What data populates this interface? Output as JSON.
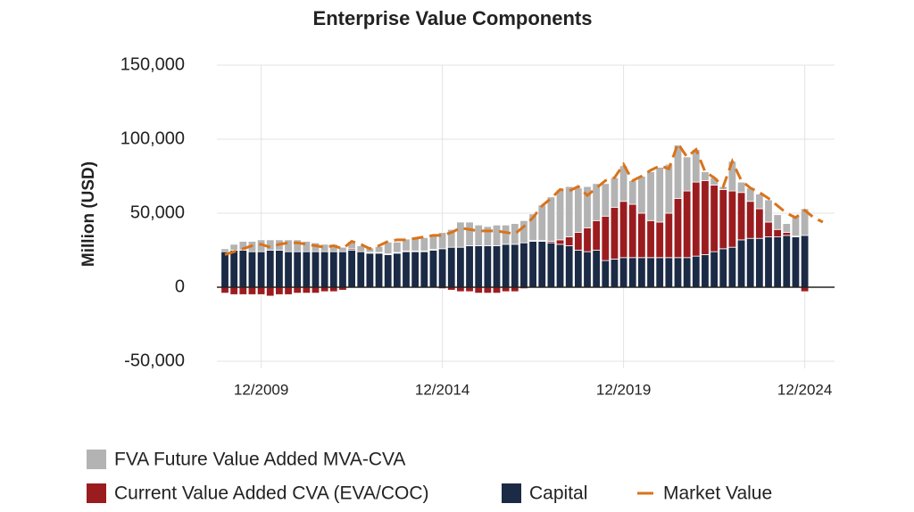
{
  "chart_data": {
    "type": "bar",
    "stacked": true,
    "title": "Enterprise Value Components",
    "y_label": "Million (USD)",
    "categories": [
      null,
      null,
      null,
      null,
      "12/2009",
      null,
      null,
      null,
      null,
      null,
      null,
      null,
      null,
      null,
      null,
      null,
      null,
      null,
      null,
      null,
      null,
      null,
      null,
      null,
      "12/2014",
      null,
      null,
      null,
      null,
      null,
      null,
      null,
      null,
      null,
      null,
      null,
      null,
      null,
      null,
      null,
      null,
      null,
      null,
      null,
      "12/2019",
      null,
      null,
      null,
      null,
      null,
      null,
      null,
      null,
      null,
      null,
      null,
      null,
      null,
      null,
      null,
      null,
      null,
      null,
      null,
      "12/2024",
      null,
      null
    ],
    "ylim": [
      -50000,
      150000
    ],
    "yticks": [
      {
        "value": -50000,
        "label": "-50,000"
      },
      0,
      {
        "value": 50000,
        "label": "50,000"
      },
      {
        "value": 100000,
        "label": "100,000"
      },
      {
        "value": 150000,
        "label": "150,000"
      }
    ],
    "grid": true,
    "legend": "bottom",
    "series": [
      {
        "name": "FVA Future Value Added MVA-CVA",
        "color": "#b3b3b3",
        "values": [
          2000,
          4000,
          6000,
          7000,
          8000,
          7000,
          7000,
          8000,
          8000,
          7000,
          6000,
          5000,
          5000,
          3000,
          5000,
          4000,
          3000,
          4000,
          8000,
          7000,
          8000,
          9000,
          9000,
          10000,
          11000,
          12000,
          17000,
          16000,
          14000,
          13000,
          14000,
          13000,
          14000,
          15000,
          18000,
          24000,
          30000,
          34000,
          34000,
          30000,
          28000,
          25000,
          22000,
          20000,
          24000,
          16000,
          25000,
          33000,
          37000,
          33000,
          36000,
          23000,
          22000,
          6000,
          5000,
          2000,
          20000,
          7000,
          9000,
          10000,
          15000,
          10000,
          6000,
          14000,
          18000,
          null,
          null
        ]
      },
      {
        "name": "Current Value Added CVA (EVA/COC)",
        "color": "#9b1c1f",
        "values": [
          -4000,
          -5000,
          -5000,
          -5000,
          -5000,
          -6000,
          -5000,
          -5000,
          -4000,
          -4000,
          -4000,
          -3000,
          -3000,
          -2000,
          1000,
          0,
          500,
          500,
          500,
          500,
          500,
          500,
          500,
          500,
          -1000,
          -2000,
          -3000,
          -3000,
          -4000,
          -4000,
          -4000,
          -3000,
          -3000,
          -1000,
          500,
          500,
          1000,
          3000,
          6000,
          12000,
          16000,
          20000,
          30000,
          35000,
          38000,
          36000,
          30000,
          25000,
          24000,
          30000,
          40000,
          45000,
          50000,
          50000,
          45000,
          40000,
          38000,
          32000,
          25000,
          20000,
          10000,
          5000,
          2000,
          500,
          -3000,
          null,
          null
        ]
      },
      {
        "name": "Capital",
        "color": "#1b2a45",
        "values": [
          24000,
          25000,
          25000,
          24000,
          24000,
          25000,
          25000,
          24000,
          24000,
          24000,
          24000,
          24000,
          24000,
          24000,
          25000,
          24000,
          23000,
          23000,
          22000,
          23000,
          24000,
          24000,
          24000,
          25000,
          26000,
          27000,
          27000,
          28000,
          28000,
          28000,
          28000,
          29000,
          29000,
          30000,
          31000,
          31000,
          30000,
          29000,
          28000,
          25000,
          24000,
          25000,
          18000,
          19000,
          20000,
          20000,
          20000,
          20000,
          20000,
          20000,
          20000,
          20000,
          21000,
          22000,
          24000,
          26000,
          27000,
          32000,
          33000,
          33000,
          34000,
          34000,
          35000,
          34000,
          35000,
          null,
          null
        ]
      },
      {
        "name": "Market Value",
        "type": "line",
        "dashed": true,
        "color": "#d9731a",
        "values": [
          22000,
          24000,
          26000,
          28000,
          29000,
          27000,
          29000,
          30000,
          30000,
          29000,
          28000,
          27000,
          28000,
          26000,
          31000,
          29000,
          26000,
          28000,
          31000,
          32000,
          32000,
          33000,
          34000,
          35000,
          35000,
          37000,
          40000,
          39000,
          38000,
          38000,
          38000,
          37000,
          36000,
          41000,
          47000,
          55000,
          60000,
          66000,
          65000,
          68000,
          62000,
          67000,
          72000,
          74000,
          83000,
          72000,
          75000,
          79000,
          82000,
          80000,
          97000,
          88000,
          93000,
          78000,
          74000,
          68000,
          85000,
          72000,
          67000,
          64000,
          60000,
          55000,
          50000,
          47000,
          52000,
          47000,
          44000
        ]
      }
    ]
  }
}
